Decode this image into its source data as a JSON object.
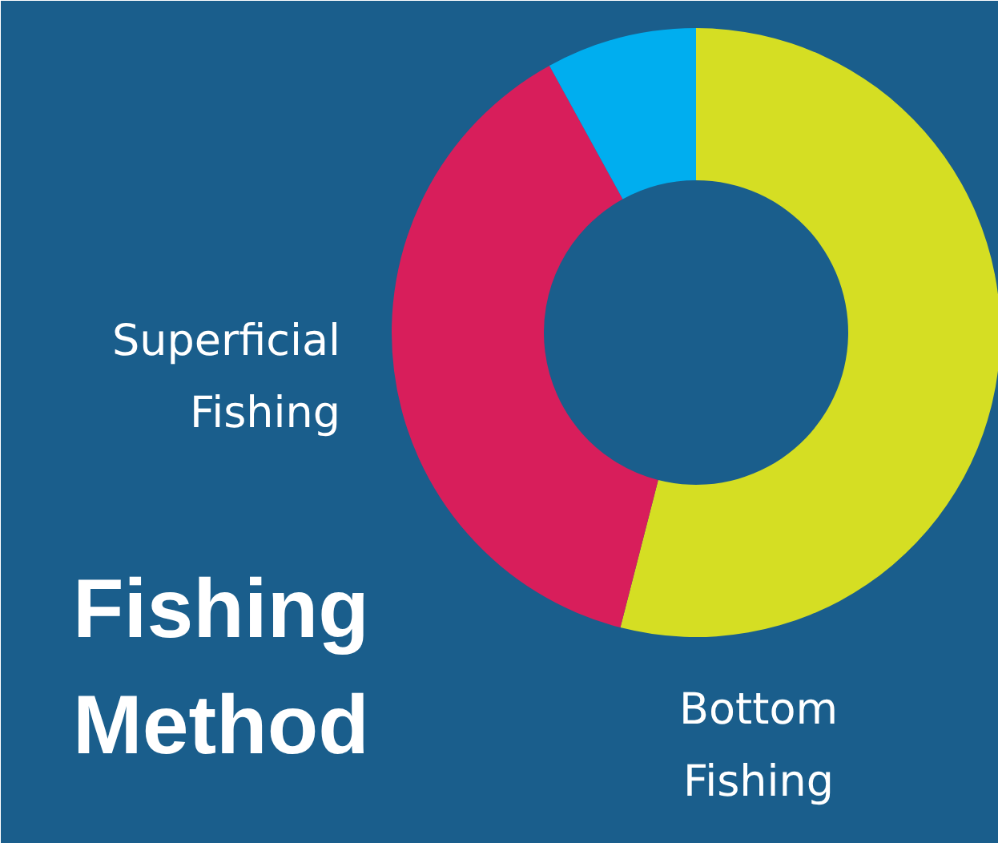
{
  "chart_data": {
    "type": "donut",
    "title": "Fishing Method",
    "categories": [
      "Bottom Fishing",
      "Superficial Fishing",
      null
    ],
    "values": [
      54,
      38,
      8
    ],
    "colors": [
      "#d5de23",
      "#d81e5b",
      "#00aeef"
    ]
  }
}
